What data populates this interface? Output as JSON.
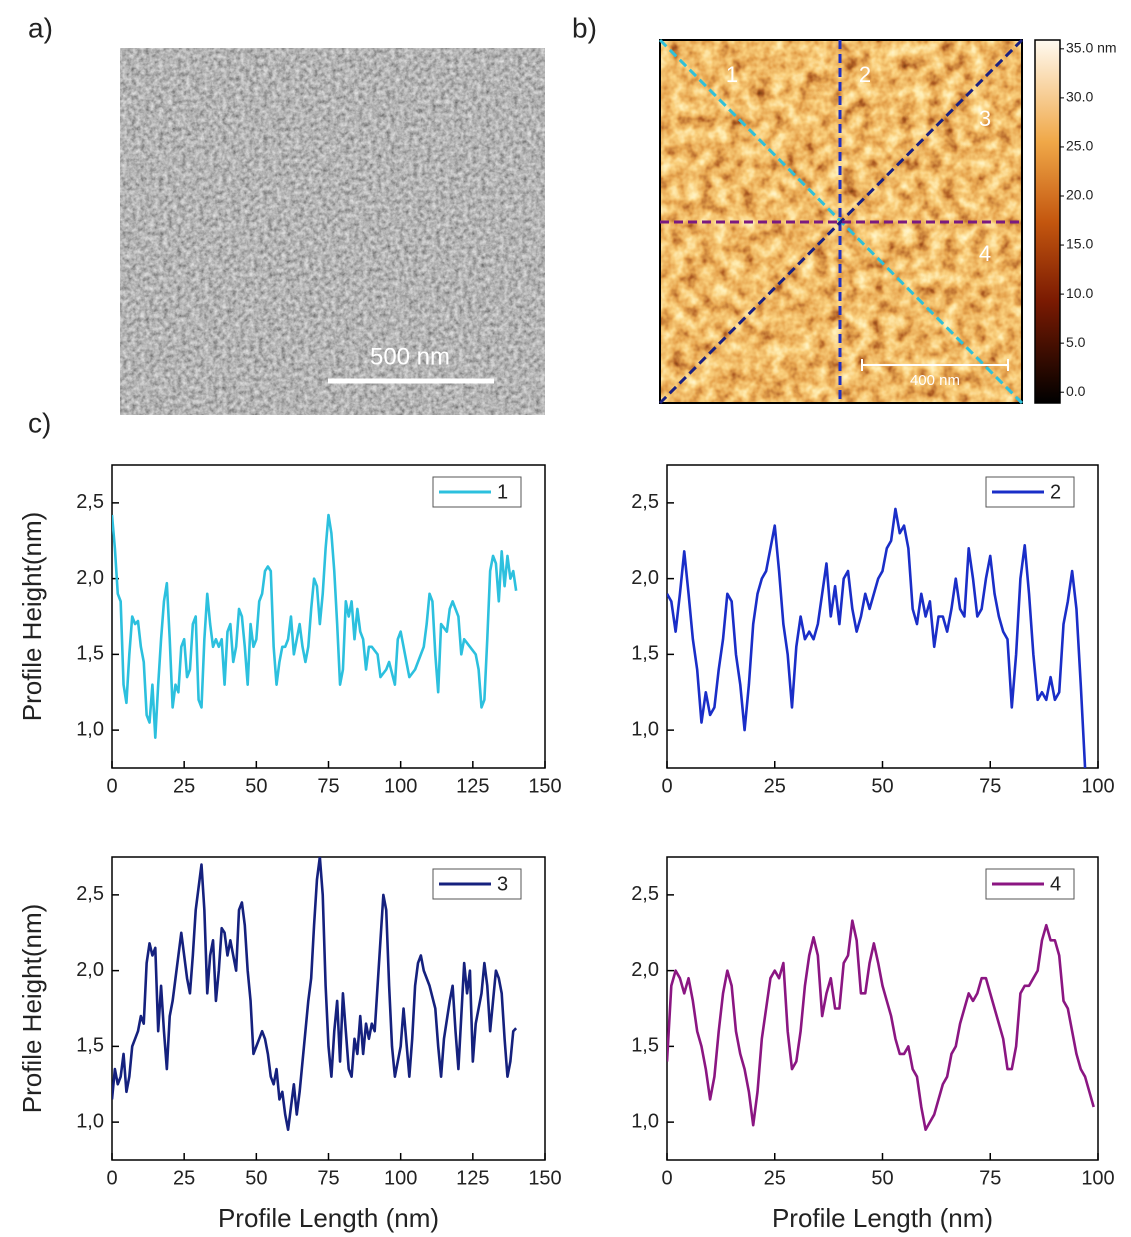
{
  "panels": {
    "a": "a)",
    "b": "b)",
    "c": "c)"
  },
  "sem": {
    "scale_bar": "500 nm"
  },
  "afm": {
    "profile_labels": [
      "1",
      "2",
      "3",
      "4"
    ],
    "scale_bar": "400 nm",
    "colorbar": {
      "lim": [
        -1.1,
        35.9
      ],
      "ticks": [
        {
          "value": 35,
          "label": "35.0 nm"
        },
        {
          "value": 30,
          "label": "30.0"
        },
        {
          "value": 25,
          "label": "25.0"
        },
        {
          "value": 20,
          "label": "20.0"
        },
        {
          "value": 15,
          "label": "15.0"
        },
        {
          "value": 10,
          "label": "10.0"
        },
        {
          "value": 5,
          "label": "5.0"
        },
        {
          "value": 0,
          "label": "0.0"
        }
      ]
    }
  },
  "chart_data": [
    {
      "type": "line",
      "y_label": "Profile Height(nm)",
      "x": [
        0,
        1,
        2,
        3,
        4,
        5,
        6,
        7,
        8,
        9,
        10,
        11,
        12,
        13,
        14,
        15,
        16,
        17,
        18,
        19,
        20,
        21,
        22,
        23,
        24,
        25,
        26,
        27,
        28,
        29,
        30,
        31,
        32,
        33,
        34,
        35,
        36,
        37,
        38,
        39,
        40,
        41,
        42,
        43,
        44,
        45,
        46,
        47,
        48,
        49,
        50,
        51,
        52,
        53,
        54,
        55,
        56,
        57,
        58,
        59,
        60,
        61,
        62,
        63,
        64,
        65,
        66,
        67,
        68,
        69,
        70,
        71,
        72,
        73,
        74,
        75,
        76,
        77,
        78,
        79,
        80,
        81,
        82,
        83,
        84,
        85,
        86,
        87,
        88,
        89,
        90,
        92,
        93,
        95,
        96,
        98,
        99,
        100,
        102,
        103,
        105,
        107,
        108,
        109,
        110,
        111,
        112,
        113,
        114,
        116,
        117,
        118,
        120,
        121,
        122,
        124,
        126,
        127,
        128,
        129,
        130,
        131,
        132,
        133,
        134,
        135,
        136,
        137,
        138,
        139,
        140
      ],
      "series": [
        {
          "name": "1",
          "color": "#2cc0de",
          "values": [
            2.42,
            2.2,
            1.9,
            1.85,
            1.3,
            1.18,
            1.5,
            1.75,
            1.7,
            1.72,
            1.55,
            1.45,
            1.1,
            1.05,
            1.3,
            0.95,
            1.3,
            1.6,
            1.85,
            1.97,
            1.6,
            1.15,
            1.3,
            1.25,
            1.55,
            1.6,
            1.35,
            1.4,
            1.7,
            1.75,
            1.2,
            1.15,
            1.6,
            1.9,
            1.7,
            1.55,
            1.6,
            1.55,
            1.6,
            1.3,
            1.65,
            1.7,
            1.45,
            1.55,
            1.8,
            1.75,
            1.55,
            1.3,
            1.7,
            1.55,
            1.6,
            1.85,
            1.9,
            2.05,
            2.08,
            2.05,
            1.55,
            1.3,
            1.45,
            1.55,
            1.55,
            1.6,
            1.75,
            1.5,
            1.6,
            1.7,
            1.55,
            1.45,
            1.55,
            1.8,
            2.0,
            1.95,
            1.7,
            1.9,
            2.2,
            2.42,
            2.3,
            2.05,
            1.7,
            1.3,
            1.4,
            1.85,
            1.75,
            1.85,
            1.6,
            1.8,
            1.65,
            1.6,
            1.4,
            1.55,
            1.55,
            1.5,
            1.35,
            1.4,
            1.45,
            1.3,
            1.6,
            1.65,
            1.45,
            1.35,
            1.4,
            1.5,
            1.55,
            1.7,
            1.9,
            1.85,
            1.5,
            1.25,
            1.7,
            1.65,
            1.8,
            1.85,
            1.75,
            1.5,
            1.6,
            1.55,
            1.5,
            1.4,
            1.15,
            1.2,
            1.6,
            2.05,
            2.15,
            2.1,
            1.85,
            2.18,
            1.95,
            2.15,
            2.0,
            2.05,
            1.92
          ]
        }
      ],
      "xlim": [
        0,
        150
      ],
      "ylim": [
        0.75,
        2.75
      ],
      "xticks": [
        0,
        25,
        50,
        75,
        100,
        125,
        150
      ],
      "yticks": [
        {
          "value": 1,
          "label": "1,0"
        },
        {
          "value": 1.5,
          "label": "1,5"
        },
        {
          "value": 2,
          "label": "2,0"
        },
        {
          "value": 2.5,
          "label": "2,5"
        }
      ]
    },
    {
      "type": "line",
      "x": [
        0,
        1,
        2,
        3,
        4,
        5,
        6,
        7,
        8,
        9,
        10,
        11,
        12,
        13,
        14,
        15,
        16,
        17,
        18,
        19,
        20,
        21,
        22,
        23,
        24,
        25,
        26,
        27,
        28,
        29,
        30,
        31,
        32,
        33,
        34,
        35,
        36,
        37,
        38,
        39,
        40,
        41,
        42,
        43,
        44,
        45,
        46,
        47,
        48,
        49,
        50,
        51,
        52,
        53,
        54,
        55,
        56,
        57,
        58,
        59,
        60,
        61,
        62,
        63,
        64,
        65,
        66,
        67,
        68,
        69,
        70,
        71,
        72,
        73,
        74,
        75,
        76,
        77,
        78,
        79,
        80,
        81,
        82,
        83,
        84,
        85,
        86,
        87,
        88,
        89,
        90,
        91,
        92,
        93,
        94,
        95,
        96,
        97
      ],
      "series": [
        {
          "name": "2",
          "color": "#1a2ec8",
          "values": [
            1.9,
            1.85,
            1.65,
            1.9,
            2.18,
            1.9,
            1.6,
            1.4,
            1.05,
            1.25,
            1.1,
            1.15,
            1.4,
            1.6,
            1.9,
            1.85,
            1.5,
            1.3,
            1.0,
            1.3,
            1.7,
            1.9,
            2.0,
            2.05,
            2.2,
            2.35,
            2.05,
            1.7,
            1.5,
            1.15,
            1.55,
            1.75,
            1.6,
            1.65,
            1.6,
            1.7,
            1.9,
            2.1,
            1.75,
            1.95,
            1.7,
            2.0,
            2.05,
            1.8,
            1.65,
            1.75,
            1.9,
            1.8,
            1.9,
            2.0,
            2.05,
            2.2,
            2.25,
            2.46,
            2.3,
            2.35,
            2.2,
            1.8,
            1.7,
            1.9,
            1.75,
            1.85,
            1.55,
            1.75,
            1.75,
            1.65,
            1.8,
            2.0,
            1.8,
            1.75,
            2.2,
            2.0,
            1.75,
            1.8,
            2.0,
            2.15,
            1.9,
            1.75,
            1.65,
            1.6,
            1.15,
            1.5,
            2.0,
            2.22,
            1.9,
            1.5,
            1.2,
            1.25,
            1.2,
            1.35,
            1.2,
            1.25,
            1.7,
            1.85,
            2.05,
            1.8,
            1.3,
            0.75
          ]
        }
      ],
      "xlim": [
        0,
        100
      ],
      "ylim": [
        0.75,
        2.75
      ],
      "xticks": [
        0,
        25,
        50,
        75,
        100
      ],
      "yticks": [
        {
          "value": 1,
          "label": "1,0"
        },
        {
          "value": 1.5,
          "label": "1,5"
        },
        {
          "value": 2,
          "label": "2,0"
        },
        {
          "value": 2.5,
          "label": "2,5"
        }
      ]
    },
    {
      "type": "line",
      "y_label": "Profile Height(nm)",
      "x_label": "Profile Length (nm)",
      "x": [
        0,
        1,
        2,
        3,
        4,
        5,
        6,
        7,
        8,
        9,
        10,
        11,
        12,
        13,
        14,
        15,
        16,
        17,
        18,
        19,
        20,
        21,
        22,
        23,
        24,
        25,
        26,
        27,
        28,
        29,
        30,
        31,
        32,
        33,
        34,
        35,
        36,
        37,
        38,
        39,
        40,
        41,
        42,
        43,
        44,
        45,
        46,
        47,
        48,
        49,
        50,
        51,
        52,
        53,
        54,
        55,
        56,
        57,
        58,
        59,
        60,
        61,
        62,
        63,
        64,
        65,
        66,
        67,
        68,
        69,
        70,
        71,
        72,
        73,
        74,
        75,
        76,
        77,
        78,
        79,
        80,
        81,
        82,
        83,
        84,
        85,
        86,
        87,
        88,
        89,
        90,
        91,
        92,
        93,
        94,
        95,
        96,
        97,
        98,
        100,
        101,
        103,
        104,
        105,
        106,
        107,
        108,
        110,
        112,
        113,
        114,
        115,
        117,
        118,
        119,
        120,
        121,
        122,
        123,
        124,
        125,
        126,
        128,
        129,
        130,
        131,
        132,
        133,
        134,
        135,
        136,
        137,
        138,
        139,
        140
      ],
      "series": [
        {
          "name": "3",
          "color": "#15217e",
          "values": [
            1.15,
            1.35,
            1.25,
            1.3,
            1.45,
            1.2,
            1.3,
            1.5,
            1.55,
            1.6,
            1.7,
            1.65,
            2.05,
            2.18,
            2.1,
            2.15,
            1.6,
            1.9,
            1.6,
            1.35,
            1.7,
            1.8,
            1.95,
            2.1,
            2.25,
            2.1,
            1.95,
            1.85,
            2.1,
            2.4,
            2.55,
            2.7,
            2.4,
            1.85,
            2.1,
            2.2,
            1.8,
            2.0,
            2.28,
            2.25,
            2.1,
            2.2,
            2.1,
            2.0,
            2.4,
            2.45,
            2.3,
            2.0,
            1.8,
            1.45,
            1.5,
            1.55,
            1.6,
            1.55,
            1.45,
            1.3,
            1.25,
            1.35,
            1.15,
            1.2,
            1.05,
            0.95,
            1.1,
            1.25,
            1.05,
            1.2,
            1.4,
            1.6,
            1.8,
            1.95,
            2.3,
            2.6,
            2.75,
            2.5,
            1.9,
            1.5,
            1.3,
            1.6,
            1.8,
            1.4,
            1.85,
            1.6,
            1.35,
            1.3,
            1.55,
            1.45,
            1.7,
            1.45,
            1.65,
            1.55,
            1.65,
            1.6,
            1.9,
            2.2,
            2.5,
            2.4,
            1.9,
            1.5,
            1.3,
            1.5,
            1.75,
            1.3,
            1.55,
            1.9,
            2.05,
            2.1,
            2.0,
            1.9,
            1.75,
            1.5,
            1.3,
            1.55,
            1.8,
            1.9,
            1.6,
            1.35,
            1.7,
            2.05,
            1.85,
            2.0,
            1.4,
            1.65,
            1.85,
            2.05,
            1.9,
            1.6,
            1.8,
            2.0,
            1.95,
            1.85,
            1.55,
            1.3,
            1.4,
            1.6,
            1.62
          ]
        }
      ],
      "xlim": [
        0,
        150
      ],
      "ylim": [
        0.75,
        2.75
      ],
      "xticks": [
        0,
        25,
        50,
        75,
        100,
        125,
        150
      ],
      "yticks": [
        {
          "value": 1,
          "label": "1,0"
        },
        {
          "value": 1.5,
          "label": "1,5"
        },
        {
          "value": 2,
          "label": "2,0"
        },
        {
          "value": 2.5,
          "label": "2,5"
        }
      ]
    },
    {
      "type": "line",
      "x_label": "Profile Length (nm)",
      "x": [
        0,
        1,
        2,
        3,
        4,
        5,
        6,
        7,
        8,
        9,
        10,
        11,
        12,
        13,
        14,
        15,
        16,
        17,
        18,
        19,
        20,
        21,
        22,
        23,
        24,
        25,
        26,
        27,
        28,
        29,
        30,
        31,
        32,
        33,
        34,
        35,
        36,
        37,
        38,
        39,
        40,
        41,
        42,
        43,
        44,
        45,
        46,
        47,
        48,
        49,
        50,
        51,
        52,
        53,
        54,
        55,
        56,
        57,
        58,
        59,
        60,
        61,
        62,
        63,
        64,
        65,
        66,
        67,
        68,
        69,
        70,
        71,
        72,
        73,
        74,
        75,
        76,
        77,
        78,
        79,
        80,
        81,
        82,
        83,
        84,
        85,
        86,
        87,
        88,
        89,
        90,
        91,
        92,
        93,
        94,
        95,
        96,
        97,
        98,
        99
      ],
      "series": [
        {
          "name": "4",
          "color": "#8b1682",
          "values": [
            1.4,
            1.9,
            2.0,
            1.95,
            1.85,
            1.95,
            1.8,
            1.6,
            1.5,
            1.35,
            1.15,
            1.3,
            1.6,
            1.85,
            2.0,
            1.9,
            1.6,
            1.45,
            1.35,
            1.2,
            0.98,
            1.2,
            1.55,
            1.75,
            1.95,
            2.0,
            1.95,
            2.05,
            1.6,
            1.35,
            1.4,
            1.6,
            1.9,
            2.1,
            2.22,
            2.1,
            1.7,
            1.85,
            1.95,
            1.75,
            1.75,
            2.05,
            2.1,
            2.33,
            2.2,
            1.85,
            1.85,
            2.05,
            2.18,
            2.05,
            1.9,
            1.8,
            1.7,
            1.55,
            1.45,
            1.45,
            1.5,
            1.35,
            1.3,
            1.1,
            0.95,
            1.0,
            1.05,
            1.15,
            1.25,
            1.3,
            1.45,
            1.5,
            1.65,
            1.75,
            1.85,
            1.8,
            1.85,
            1.95,
            1.95,
            1.85,
            1.75,
            1.65,
            1.55,
            1.35,
            1.35,
            1.5,
            1.85,
            1.9,
            1.9,
            1.95,
            2.0,
            2.2,
            2.3,
            2.2,
            2.2,
            2.1,
            1.8,
            1.75,
            1.6,
            1.45,
            1.35,
            1.3,
            1.2,
            1.1
          ]
        }
      ],
      "xlim": [
        0,
        100
      ],
      "ylim": [
        0.75,
        2.75
      ],
      "xticks": [
        0,
        25,
        50,
        75,
        100
      ],
      "yticks": [
        {
          "value": 1,
          "label": "1,0"
        },
        {
          "value": 1.5,
          "label": "1,5"
        },
        {
          "value": 2,
          "label": "2,0"
        },
        {
          "value": 2.5,
          "label": "2,5"
        }
      ]
    }
  ]
}
